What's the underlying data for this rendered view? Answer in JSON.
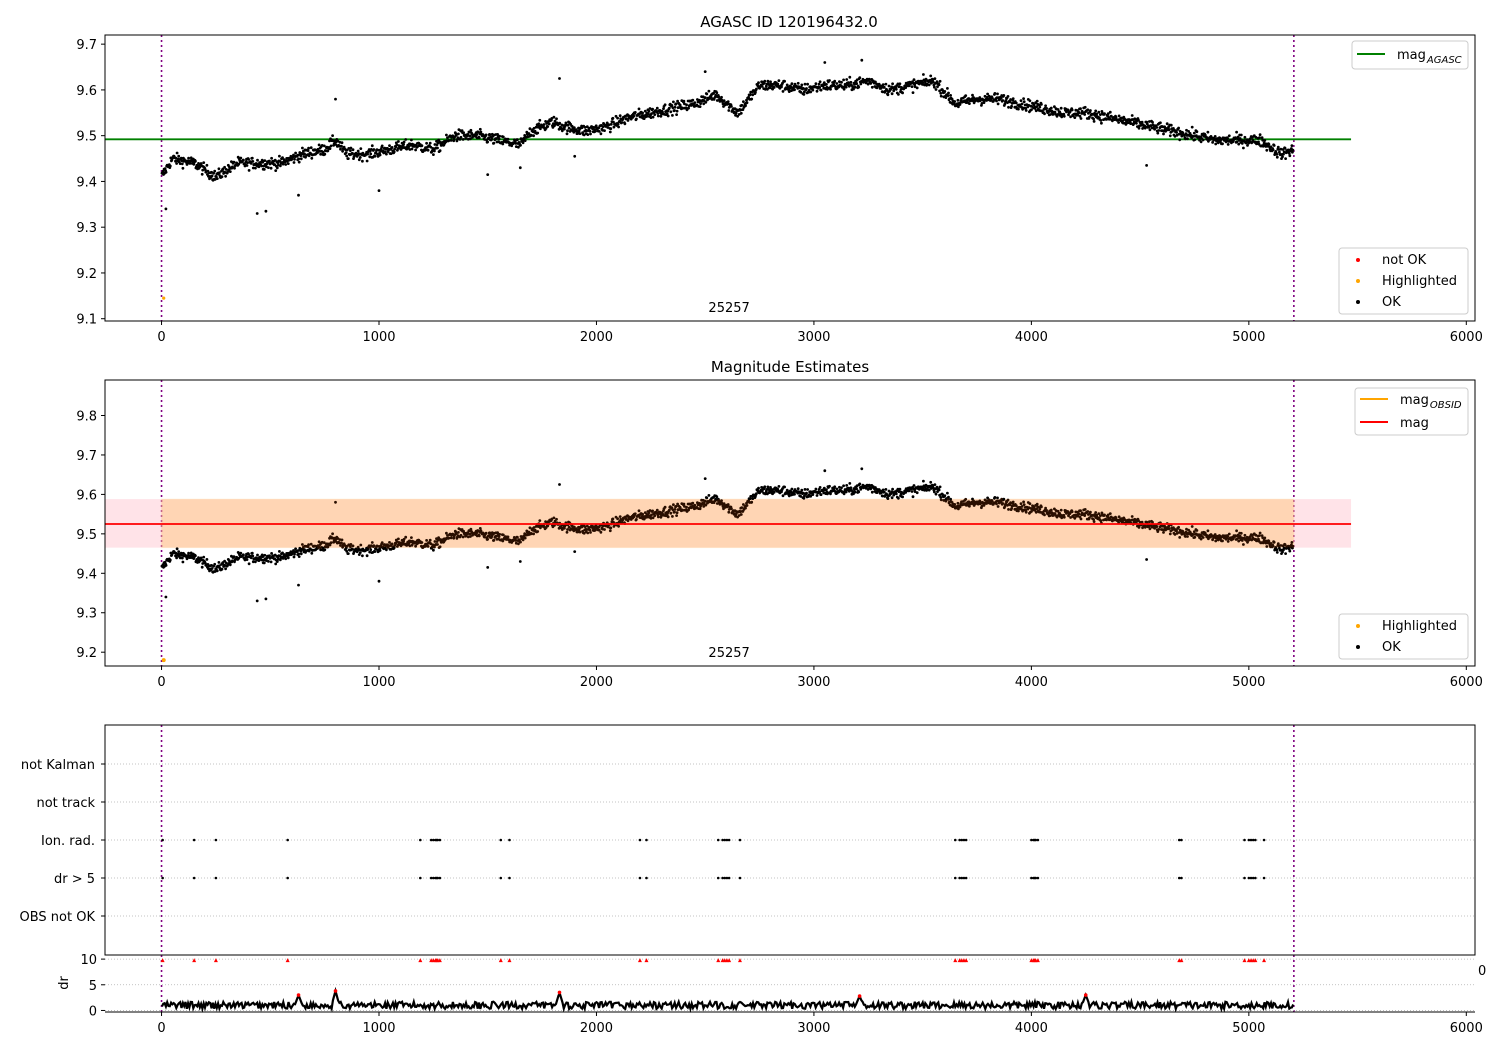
{
  "chart_data": [
    {
      "type": "scatter",
      "title": "AGASC ID 120196432.0",
      "xlim": [
        -260,
        6040
      ],
      "ylim": [
        9.095,
        9.72
      ],
      "xticks": [
        0,
        1000,
        2000,
        3000,
        4000,
        5000,
        6000
      ],
      "yticks": [
        9.1,
        9.2,
        9.3,
        9.4,
        9.5,
        9.6,
        9.7
      ],
      "grid": false,
      "obsid_label": "25257",
      "obsid_label_x": 2610,
      "vlines": [
        0,
        5207
      ],
      "hline": {
        "name": "mag_AGASC",
        "y": 9.492,
        "x_range": [
          -260,
          5470
        ],
        "color": "#008000"
      },
      "highlighted_points": [
        {
          "x": 10,
          "y": 9.145
        }
      ],
      "series_trend": {
        "name": "OK",
        "x": [
          0,
          50,
          150,
          250,
          350,
          450,
          550,
          650,
          750,
          800,
          850,
          950,
          1050,
          1150,
          1250,
          1350,
          1450,
          1550,
          1650,
          1700,
          1800,
          1850,
          1950,
          2050,
          2150,
          2250,
          2350,
          2450,
          2550,
          2650,
          2750,
          2850,
          2950,
          3050,
          3150,
          3250,
          3350,
          3450,
          3550,
          3650,
          3750,
          3850,
          3950,
          4050,
          4150,
          4250,
          4350,
          4450,
          4550,
          4650,
          4750,
          4850,
          4950,
          5050,
          5150,
          5207
        ],
        "y": [
          9.41,
          9.45,
          9.44,
          9.41,
          9.44,
          9.44,
          9.44,
          9.46,
          9.47,
          9.49,
          9.46,
          9.46,
          9.47,
          9.48,
          9.47,
          9.5,
          9.5,
          9.49,
          9.48,
          9.51,
          9.53,
          9.52,
          9.51,
          9.52,
          9.54,
          9.55,
          9.56,
          9.57,
          9.59,
          9.55,
          9.61,
          9.61,
          9.6,
          9.61,
          9.61,
          9.62,
          9.6,
          9.61,
          9.62,
          9.57,
          9.58,
          9.58,
          9.57,
          9.56,
          9.55,
          9.55,
          9.54,
          9.53,
          9.52,
          9.51,
          9.5,
          9.49,
          9.49,
          9.49,
          9.46,
          9.47
        ]
      },
      "outliers": [
        [
          20,
          9.34
        ],
        [
          440,
          9.33
        ],
        [
          480,
          9.335
        ],
        [
          630,
          9.37
        ],
        [
          1000,
          9.38
        ],
        [
          1500,
          9.415
        ],
        [
          4530,
          9.435
        ],
        [
          1900,
          9.455
        ],
        [
          1650,
          9.43
        ],
        [
          800,
          9.58
        ],
        [
          1830,
          9.625
        ],
        [
          2500,
          9.64
        ],
        [
          3050,
          9.66
        ],
        [
          3220,
          9.665
        ]
      ],
      "legend_lines": [
        {
          "label": "mag",
          "sub": "AGASC",
          "color": "#008000"
        }
      ],
      "legend_points": [
        {
          "label": "not OK",
          "color": "#ff0000"
        },
        {
          "label": "Highlighted",
          "color": "#ffa500"
        },
        {
          "label": "OK",
          "color": "#000000"
        }
      ]
    },
    {
      "type": "scatter",
      "title": "Magnitude Estimates",
      "xlim": [
        -260,
        6040
      ],
      "ylim": [
        9.165,
        9.89
      ],
      "xticks": [
        0,
        1000,
        2000,
        3000,
        4000,
        5000,
        6000
      ],
      "yticks": [
        9.2,
        9.3,
        9.4,
        9.5,
        9.6,
        9.7,
        9.8
      ],
      "grid": false,
      "obsid_label": "25257",
      "obsid_label_x": 2610,
      "vlines": [
        0,
        5207
      ],
      "mag_line": {
        "name": "mag",
        "y": 9.525,
        "x_range": [
          -260,
          5470
        ],
        "color": "#ff0000"
      },
      "mag_band": {
        "y_low": 9.465,
        "y_high": 9.588
      },
      "highlighted_points": [
        {
          "x": 10,
          "y": 9.18
        }
      ],
      "legend_lines": [
        {
          "label": "mag",
          "sub": "OBSID",
          "color": "#ffa500"
        },
        {
          "label": "mag",
          "sub": "",
          "color": "#ff0000"
        }
      ],
      "legend_points": [
        {
          "label": "Highlighted",
          "color": "#ffa500"
        },
        {
          "label": "OK",
          "color": "#000000"
        }
      ]
    },
    {
      "type": "scatter",
      "title": "",
      "xlim": [
        -260,
        6040
      ],
      "categories": [
        "not Kalman",
        "not track",
        "Ion. rad.",
        "dr > 5",
        "OBS not OK"
      ],
      "vlines": [
        0,
        5207
      ],
      "flag_times": [
        5,
        150,
        250,
        580,
        1190,
        1240,
        1250,
        1260,
        1265,
        1270,
        1280,
        1560,
        1600,
        2200,
        2230,
        2560,
        2580,
        2590,
        2600,
        2610,
        2660,
        3650,
        3670,
        3680,
        3690,
        3700,
        4000,
        4010,
        4015,
        4020,
        4030,
        4680,
        4690,
        4980,
        5000,
        5010,
        5020,
        5030,
        5070
      ],
      "flag_rows": [
        "Ion. rad.",
        "dr > 5"
      ]
    },
    {
      "type": "line",
      "title": "",
      "xlim": [
        -260,
        6040
      ],
      "ylim": [
        -0.3,
        10.8
      ],
      "xticks": [
        0,
        1000,
        2000,
        3000,
        4000,
        5000,
        6000
      ],
      "yticks": [
        0,
        5,
        10
      ],
      "ylabel": "dr",
      "stray_tick_label": "0",
      "dr_baseline": 1.0,
      "dr_spikes": [
        [
          630,
          3.0
        ],
        [
          800,
          3.8
        ],
        [
          1830,
          3.5
        ],
        [
          3210,
          2.8
        ],
        [
          4250,
          3.0
        ]
      ],
      "red_markers_y": 9.8
    }
  ]
}
